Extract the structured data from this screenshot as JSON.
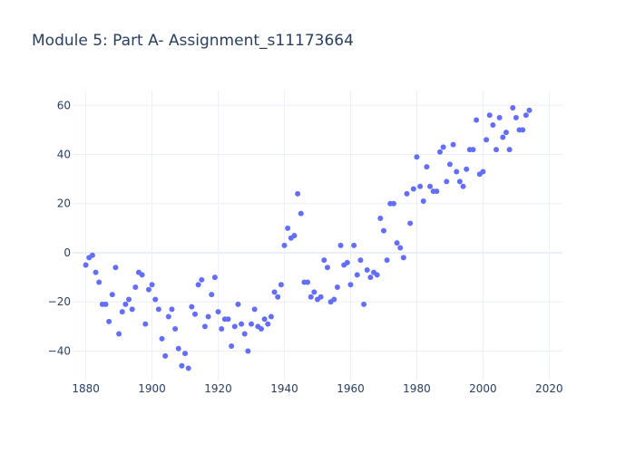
{
  "chart_data": {
    "type": "scatter",
    "title": "Module 5: Part A- Assignment_s11173664",
    "xlabel": "",
    "ylabel": "",
    "xlim": [
      1876,
      2024
    ],
    "ylim": [
      -52,
      66
    ],
    "x_ticks": [
      1880,
      1900,
      1920,
      1940,
      1960,
      1980,
      2000,
      2020
    ],
    "y_ticks": [
      -40,
      -20,
      0,
      20,
      40,
      60
    ],
    "x_tick_labels": [
      "1880",
      "1900",
      "1920",
      "1940",
      "1960",
      "1980",
      "2000",
      "2020"
    ],
    "y_tick_labels": [
      "−40",
      "−20",
      "0",
      "20",
      "40",
      "60"
    ],
    "grid": true,
    "marker_color": "#636efa",
    "series": [
      {
        "x": [
          1880,
          1881,
          1882,
          1883,
          1884,
          1885,
          1886,
          1887,
          1888,
          1889,
          1890,
          1891,
          1892,
          1893,
          1894,
          1895,
          1896,
          1897,
          1898,
          1899,
          1900,
          1901,
          1902,
          1903,
          1904,
          1905,
          1906,
          1907,
          1908,
          1909,
          1910,
          1911,
          1912,
          1913,
          1914,
          1915,
          1916,
          1917,
          1918,
          1919,
          1920,
          1921,
          1922,
          1923,
          1924,
          1925,
          1926,
          1927,
          1928,
          1929,
          1930,
          1931,
          1932,
          1933,
          1934,
          1935,
          1936,
          1937,
          1938,
          1939,
          1940,
          1941,
          1942,
          1943,
          1944,
          1945,
          1946,
          1947,
          1948,
          1949,
          1950,
          1951,
          1952,
          1953,
          1954,
          1955,
          1956,
          1957,
          1958,
          1959,
          1960,
          1961,
          1962,
          1963,
          1964,
          1965,
          1966,
          1967,
          1968,
          1969,
          1970,
          1971,
          1972,
          1973,
          1974,
          1975,
          1976,
          1977,
          1978,
          1979,
          1980,
          1981,
          1982,
          1983,
          1984,
          1985,
          1986,
          1987,
          1988,
          1989,
          1990,
          1991,
          1992,
          1993,
          1994,
          1995,
          1996,
          1997,
          1998,
          1999,
          2000,
          2001,
          2002,
          2003,
          2004,
          2005,
          2006,
          2007,
          2008,
          2009,
          2010,
          2011,
          2012,
          2013,
          2014
        ],
        "y": [
          -5,
          -2,
          -1,
          -8,
          -12,
          -21,
          -21,
          -28,
          -17,
          -6,
          -33,
          -24,
          -21,
          -19,
          -23,
          -14,
          -8,
          -9,
          -29,
          -15,
          -13,
          -19,
          -23,
          -35,
          -42,
          -26,
          -23,
          -31,
          -39,
          -46,
          -41,
          -47,
          -22,
          -25,
          -13,
          -11,
          -30,
          -26,
          -17,
          -10,
          -24,
          -31,
          -27,
          -27,
          -38,
          -30,
          -21,
          -29,
          -33,
          -40,
          -29,
          -23,
          -30,
          -31,
          -27,
          -29,
          -26,
          -16,
          -18,
          -13,
          3,
          10,
          6,
          7,
          24,
          16,
          -12,
          -12,
          -18,
          -16,
          -19,
          -18,
          -3,
          -6,
          -20,
          -19,
          -14,
          3,
          -5,
          -4,
          -13,
          3,
          -9,
          -3,
          -21,
          -7,
          -10,
          -8,
          -9,
          14,
          9,
          -3,
          20,
          20,
          4,
          2,
          -2,
          24,
          12,
          26,
          39,
          27,
          21,
          35,
          27,
          25,
          25,
          41,
          43,
          29,
          36,
          44,
          33,
          29,
          27,
          34,
          42,
          42,
          54,
          32,
          33,
          46,
          56,
          52,
          42,
          55,
          47,
          49,
          42,
          59,
          55,
          50,
          50,
          56,
          58
        ]
      }
    ]
  }
}
